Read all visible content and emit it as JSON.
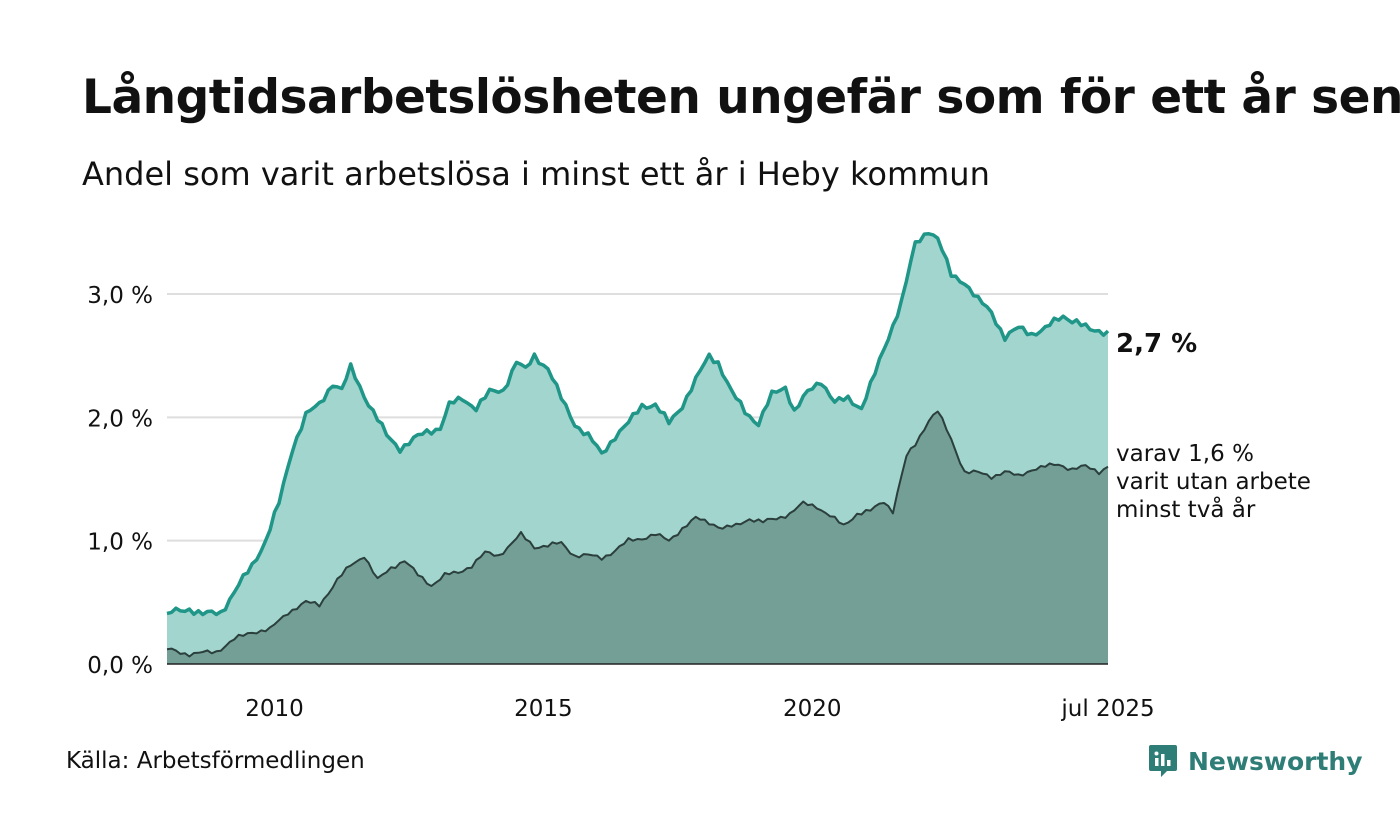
{
  "title": "Långtidsarbetslösheten ungefär som för ett år sen",
  "subtitle": "Andel som varit arbetslösa i minst ett år i Heby kommun",
  "source": "Källa: Arbetsförmedlingen",
  "brand": {
    "name": "Newsworthy",
    "color": "#2e7d76",
    "icon": "newsworthy-logo-icon"
  },
  "colors": {
    "total_line": "#1f9688",
    "total_fill": "#a3d5cf",
    "long_line": "#2b3f3c",
    "long_fill": "#739f97",
    "grid": "#dedede"
  },
  "annotations": {
    "last_value": "2,7 %",
    "sub_note": [
      "varav 1,6 %",
      "varit utan arbete",
      "minst två år"
    ]
  },
  "chart_data": {
    "type": "area",
    "x_start": "2008-01",
    "x_end": "2025-07",
    "x_step": "month",
    "ylim": [
      0,
      3.6
    ],
    "grid": true,
    "y_ticks": [
      0,
      1,
      2,
      3
    ],
    "y_tick_labels": [
      "0,0 %",
      "1,0 %",
      "2,0 %",
      "3,0 %"
    ],
    "x_ticks": [
      "2010-01",
      "2015-01",
      "2020-01",
      "2025-07"
    ],
    "x_tick_labels": [
      "2010",
      "2015",
      "2020",
      "jul 2025"
    ],
    "series": [
      {
        "key": "minst_ett_ar",
        "anchors": [
          [
            "2008-01",
            0.41
          ],
          [
            "2008-06",
            0.45
          ],
          [
            "2008-09",
            0.4
          ],
          [
            "2009-01",
            0.42
          ],
          [
            "2009-04",
            0.58
          ],
          [
            "2009-08",
            0.8
          ],
          [
            "2009-11",
            1.0
          ],
          [
            "2010-02",
            1.3
          ],
          [
            "2010-05",
            1.75
          ],
          [
            "2010-08",
            2.02
          ],
          [
            "2010-11",
            2.1
          ],
          [
            "2011-02",
            2.28
          ],
          [
            "2011-04",
            2.22
          ],
          [
            "2011-06",
            2.4
          ],
          [
            "2011-09",
            2.18
          ],
          [
            "2011-11",
            2.05
          ],
          [
            "2012-02",
            1.85
          ],
          [
            "2012-05",
            1.75
          ],
          [
            "2012-08",
            1.82
          ],
          [
            "2012-11",
            1.88
          ],
          [
            "2013-02",
            1.92
          ],
          [
            "2013-04",
            2.1
          ],
          [
            "2013-07",
            2.15
          ],
          [
            "2013-10",
            2.08
          ],
          [
            "2014-01",
            2.2
          ],
          [
            "2014-04",
            2.22
          ],
          [
            "2014-07",
            2.45
          ],
          [
            "2014-09",
            2.38
          ],
          [
            "2014-11",
            2.5
          ],
          [
            "2015-02",
            2.4
          ],
          [
            "2015-05",
            2.15
          ],
          [
            "2015-08",
            1.95
          ],
          [
            "2015-11",
            1.85
          ],
          [
            "2016-02",
            1.7
          ],
          [
            "2016-05",
            1.85
          ],
          [
            "2016-08",
            1.95
          ],
          [
            "2016-11",
            2.1
          ],
          [
            "2017-02",
            2.1
          ],
          [
            "2017-05",
            1.95
          ],
          [
            "2017-08",
            2.1
          ],
          [
            "2017-11",
            2.3
          ],
          [
            "2018-02",
            2.5
          ],
          [
            "2018-04",
            2.45
          ],
          [
            "2018-07",
            2.2
          ],
          [
            "2018-10",
            2.05
          ],
          [
            "2019-01",
            1.95
          ],
          [
            "2019-04",
            2.18
          ],
          [
            "2019-07",
            2.25
          ],
          [
            "2019-09",
            2.05
          ],
          [
            "2019-12",
            2.2
          ],
          [
            "2020-03",
            2.3
          ],
          [
            "2020-06",
            2.12
          ],
          [
            "2020-09",
            2.15
          ],
          [
            "2020-12",
            2.08
          ],
          [
            "2021-03",
            2.35
          ],
          [
            "2021-06",
            2.65
          ],
          [
            "2021-09",
            2.95
          ],
          [
            "2021-12",
            3.4
          ],
          [
            "2022-03",
            3.52
          ],
          [
            "2022-05",
            3.45
          ],
          [
            "2022-08",
            3.15
          ],
          [
            "2022-11",
            3.1
          ],
          [
            "2023-02",
            2.95
          ],
          [
            "2023-05",
            2.85
          ],
          [
            "2023-08",
            2.65
          ],
          [
            "2023-11",
            2.72
          ],
          [
            "2024-02",
            2.68
          ],
          [
            "2024-05",
            2.72
          ],
          [
            "2024-09",
            2.82
          ],
          [
            "2024-12",
            2.78
          ],
          [
            "2025-03",
            2.7
          ],
          [
            "2025-07",
            2.7
          ]
        ]
      },
      {
        "key": "minst_tva_ar",
        "anchors": [
          [
            "2008-01",
            0.12
          ],
          [
            "2008-06",
            0.08
          ],
          [
            "2008-12",
            0.1
          ],
          [
            "2009-04",
            0.2
          ],
          [
            "2009-08",
            0.26
          ],
          [
            "2009-12",
            0.28
          ],
          [
            "2010-04",
            0.42
          ],
          [
            "2010-08",
            0.5
          ],
          [
            "2010-11",
            0.48
          ],
          [
            "2011-03",
            0.68
          ],
          [
            "2011-06",
            0.8
          ],
          [
            "2011-09",
            0.88
          ],
          [
            "2011-12",
            0.68
          ],
          [
            "2012-03",
            0.78
          ],
          [
            "2012-06",
            0.84
          ],
          [
            "2012-09",
            0.72
          ],
          [
            "2012-12",
            0.64
          ],
          [
            "2013-03",
            0.72
          ],
          [
            "2013-06",
            0.74
          ],
          [
            "2013-09",
            0.8
          ],
          [
            "2013-12",
            0.9
          ],
          [
            "2014-03",
            0.88
          ],
          [
            "2014-06",
            0.98
          ],
          [
            "2014-08",
            1.05
          ],
          [
            "2014-11",
            0.95
          ],
          [
            "2015-02",
            0.96
          ],
          [
            "2015-05",
            0.98
          ],
          [
            "2015-08",
            0.88
          ],
          [
            "2015-11",
            0.88
          ],
          [
            "2016-02",
            0.86
          ],
          [
            "2016-05",
            0.92
          ],
          [
            "2016-08",
            1.0
          ],
          [
            "2016-11",
            1.02
          ],
          [
            "2017-02",
            1.05
          ],
          [
            "2017-05",
            1.0
          ],
          [
            "2017-08",
            1.1
          ],
          [
            "2017-11",
            1.18
          ],
          [
            "2018-02",
            1.15
          ],
          [
            "2018-05",
            1.1
          ],
          [
            "2018-08",
            1.12
          ],
          [
            "2018-11",
            1.18
          ],
          [
            "2019-02",
            1.15
          ],
          [
            "2019-05",
            1.18
          ],
          [
            "2019-08",
            1.22
          ],
          [
            "2019-11",
            1.3
          ],
          [
            "2020-02",
            1.28
          ],
          [
            "2020-05",
            1.2
          ],
          [
            "2020-08",
            1.12
          ],
          [
            "2020-11",
            1.22
          ],
          [
            "2021-02",
            1.24
          ],
          [
            "2021-05",
            1.32
          ],
          [
            "2021-07",
            1.24
          ],
          [
            "2021-10",
            1.68
          ],
          [
            "2021-12",
            1.78
          ],
          [
            "2022-03",
            1.98
          ],
          [
            "2022-05",
            2.05
          ],
          [
            "2022-08",
            1.82
          ],
          [
            "2022-11",
            1.56
          ],
          [
            "2023-02",
            1.55
          ],
          [
            "2023-05",
            1.52
          ],
          [
            "2023-08",
            1.56
          ],
          [
            "2023-11",
            1.52
          ],
          [
            "2024-02",
            1.58
          ],
          [
            "2024-05",
            1.6
          ],
          [
            "2024-08",
            1.62
          ],
          [
            "2024-11",
            1.58
          ],
          [
            "2025-02",
            1.6
          ],
          [
            "2025-05",
            1.56
          ],
          [
            "2025-07",
            1.6
          ]
        ]
      }
    ]
  }
}
